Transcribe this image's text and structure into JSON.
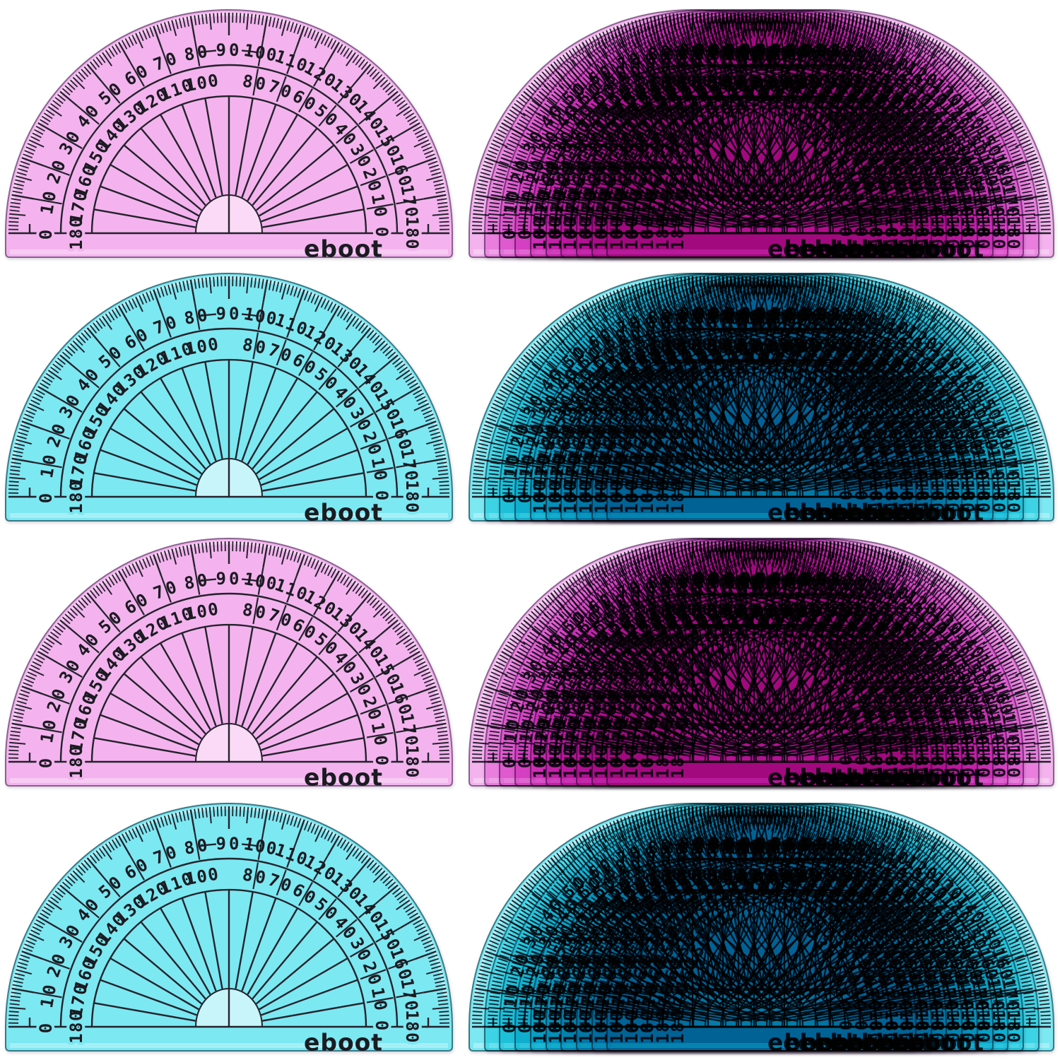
{
  "photo": {
    "description": "Product photo of eboot 180-degree protractors, pink and blue, singles and fanned stacks",
    "background": "#ffffff",
    "grid": {
      "rows": 4,
      "cols": 2
    }
  },
  "brand": "eboot",
  "protractor": {
    "top_label": "90",
    "outer_scale": [
      0,
      10,
      20,
      30,
      40,
      50,
      60,
      70,
      80,
      90,
      100,
      110,
      120,
      130,
      140,
      150,
      160,
      170,
      180
    ],
    "inner_scale": [
      180,
      170,
      160,
      150,
      140,
      130,
      120,
      110,
      100,
      80,
      70,
      60,
      50,
      40,
      30,
      20,
      10,
      0
    ],
    "tick_step_deg": 1,
    "label_step_deg": 10
  },
  "colors": {
    "pink": {
      "body": "#f4b3ee",
      "cutout": "#fbdaf7",
      "edge": "#8a6290"
    },
    "blue": {
      "body": "#7ce8f2",
      "cutout": "#c8f5f9",
      "edge": "#3a7a85"
    },
    "line": "#23232c",
    "text": "#1b1b22"
  },
  "tiles": [
    {
      "row": 1,
      "col": 1,
      "color": "pink",
      "count": 1
    },
    {
      "row": 1,
      "col": 2,
      "color": "pink",
      "count": 10
    },
    {
      "row": 2,
      "col": 1,
      "color": "blue",
      "count": 1
    },
    {
      "row": 2,
      "col": 2,
      "color": "blue",
      "count": 10
    },
    {
      "row": 3,
      "col": 1,
      "color": "pink",
      "count": 1
    },
    {
      "row": 3,
      "col": 2,
      "color": "pink",
      "count": 10
    },
    {
      "row": 4,
      "col": 1,
      "color": "blue",
      "count": 1
    },
    {
      "row": 4,
      "col": 2,
      "color": "blue",
      "count": 10
    }
  ]
}
